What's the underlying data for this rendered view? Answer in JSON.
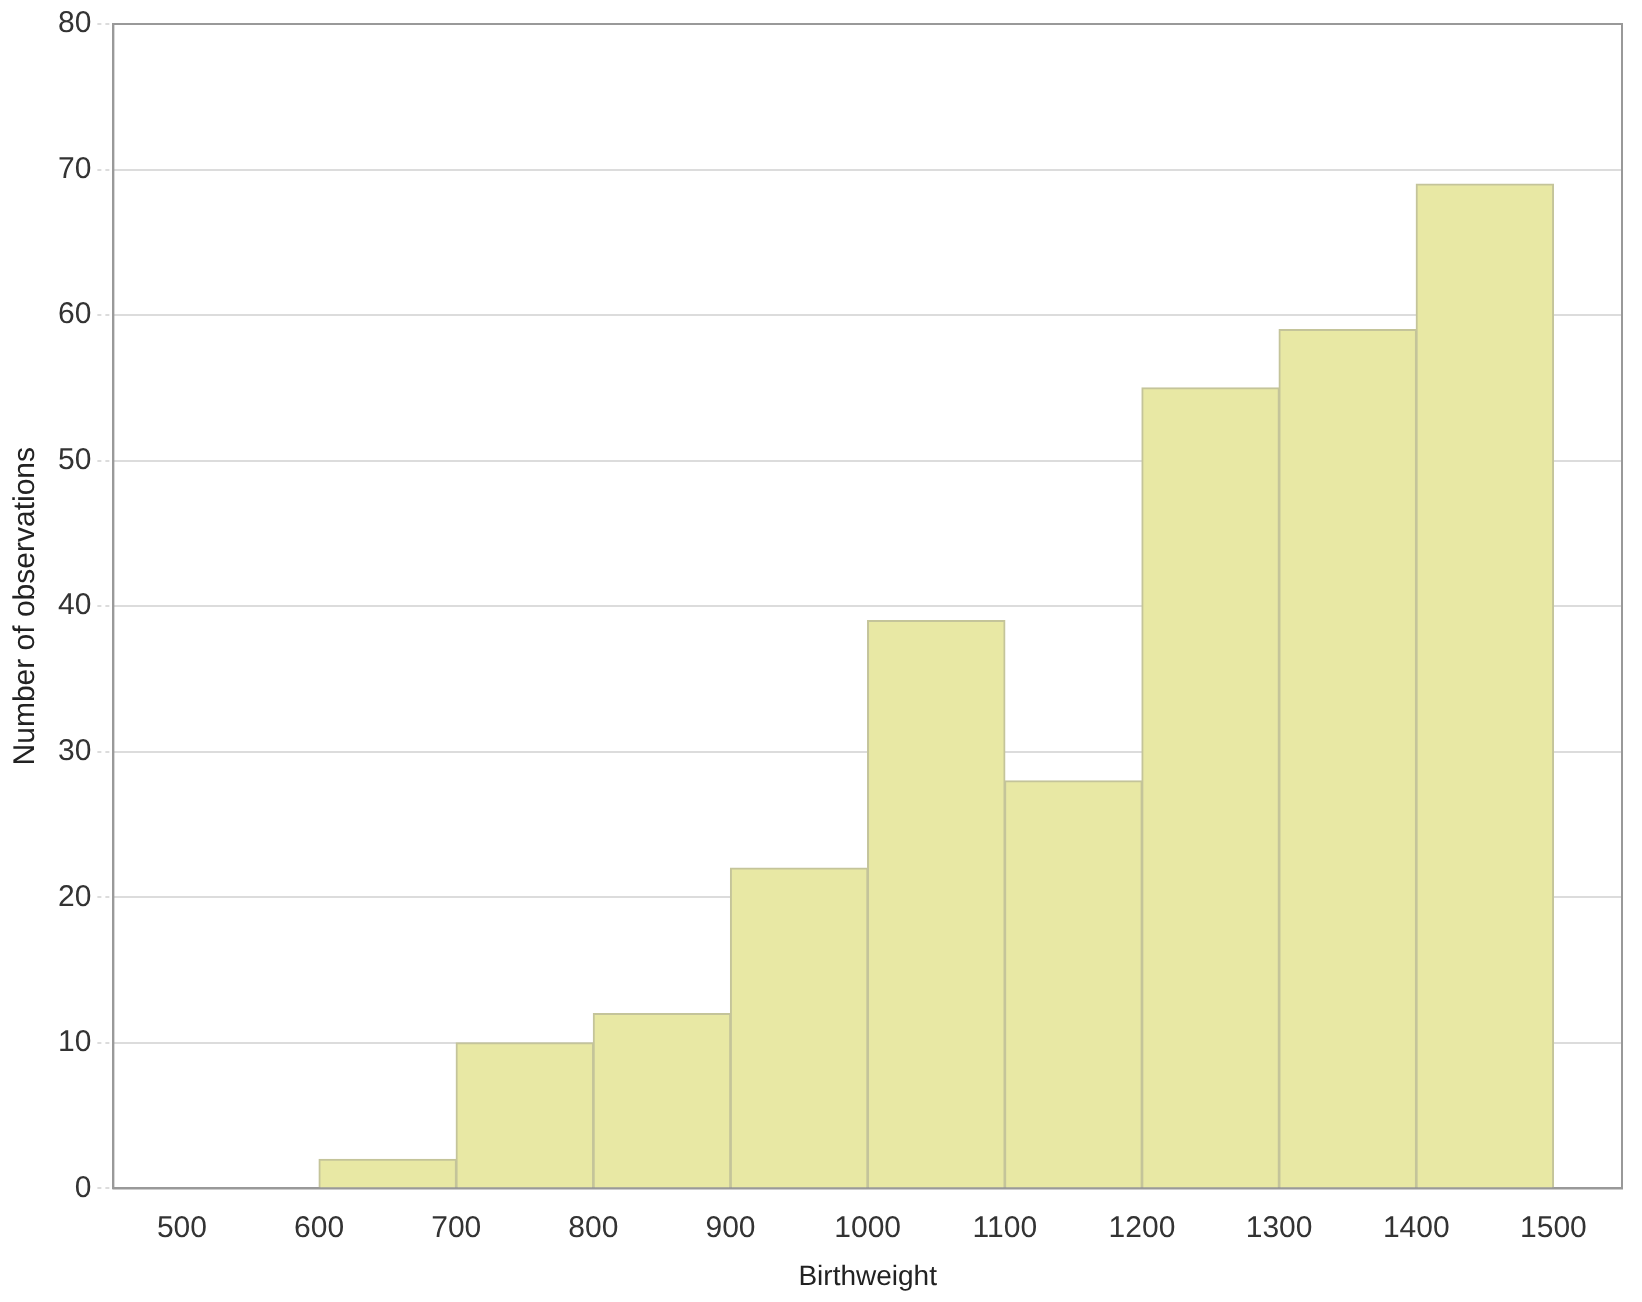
{
  "chart_data": {
    "type": "histogram",
    "xlabel": "Birthweight",
    "ylabel": "Number of observations",
    "bins": [
      500,
      600,
      700,
      800,
      900,
      1000,
      1100,
      1200,
      1300,
      1400,
      1500
    ],
    "values": [
      0,
      2,
      10,
      12,
      22,
      39,
      28,
      55,
      59,
      69
    ],
    "color": "#e8e8a4",
    "xlim": [
      450,
      1550
    ],
    "xticks": [
      500,
      600,
      700,
      800,
      900,
      1000,
      1100,
      1200,
      1300,
      1400,
      1500
    ],
    "ylim": [
      0,
      80
    ],
    "yticks": [
      0,
      10,
      20,
      30,
      40,
      50,
      60,
      70,
      80
    ],
    "grid": "y",
    "legend": false
  }
}
